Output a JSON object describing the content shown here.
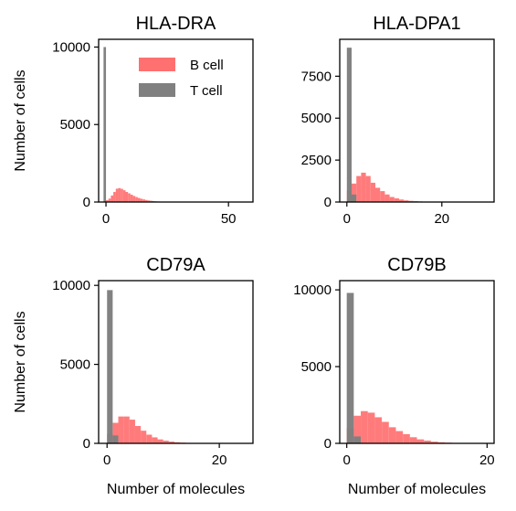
{
  "colors": {
    "b_cell": "#ff7070",
    "t_cell": "#808080",
    "axes": "#000000"
  },
  "chart_data": [
    {
      "type": "bar",
      "title": "HLA-DRA",
      "xlabel": "",
      "ylabel": "Number of cells",
      "xlim": [
        -3,
        60
      ],
      "ylim": [
        0,
        10500
      ],
      "xticks": [
        0,
        50
      ],
      "xtick_labels": [
        "0",
        "50"
      ],
      "yticks": [
        0,
        5000,
        10000
      ],
      "ytick_labels": [
        "0",
        "5000",
        "10000"
      ],
      "legend": {
        "position": "top-right",
        "entries": [
          "B cell",
          "T cell"
        ]
      },
      "series": [
        {
          "name": "B cell",
          "bin_width": 1,
          "bins": [
            0,
            1,
            2,
            3,
            4,
            5,
            6,
            7,
            8,
            9,
            10,
            11,
            12,
            13,
            14,
            15,
            16,
            17,
            18,
            19,
            20,
            21,
            22,
            23,
            24
          ],
          "values": [
            120,
            220,
            420,
            650,
            860,
            900,
            850,
            760,
            650,
            560,
            470,
            390,
            320,
            260,
            210,
            170,
            130,
            100,
            80,
            60,
            45,
            35,
            25,
            18,
            12
          ]
        },
        {
          "name": "T cell",
          "bin_width": 1,
          "bins": [
            -1
          ],
          "values": [
            10000
          ]
        }
      ]
    },
    {
      "type": "bar",
      "title": "HLA-DPA1",
      "xlabel": "",
      "ylabel": "",
      "xlim": [
        -1.5,
        31
      ],
      "ylim": [
        0,
        9700
      ],
      "xticks": [
        0,
        20
      ],
      "xtick_labels": [
        "0",
        "20"
      ],
      "yticks": [
        0,
        2500,
        5000,
        7500
      ],
      "ytick_labels": [
        "0",
        "2500",
        "5000",
        "7500"
      ],
      "series": [
        {
          "name": "B cell",
          "bin_width": 1,
          "bins": [
            0,
            1,
            2,
            3,
            4,
            5,
            6,
            7,
            8,
            9,
            10,
            11,
            12,
            13,
            14,
            15,
            16,
            17,
            18,
            19,
            20
          ],
          "values": [
            700,
            1100,
            1550,
            1750,
            1550,
            1150,
            850,
            650,
            450,
            300,
            220,
            150,
            100,
            70,
            50,
            35,
            25,
            18,
            12,
            8,
            5
          ]
        },
        {
          "name": "T cell",
          "bin_width": 1,
          "bins": [
            0,
            1
          ],
          "values": [
            9200,
            450
          ]
        }
      ]
    },
    {
      "type": "bar",
      "title": "CD79A",
      "xlabel": "Number of molecules",
      "ylabel": "Number of cells",
      "xlim": [
        -1.5,
        26
      ],
      "ylim": [
        0,
        10300
      ],
      "xticks": [
        0,
        20
      ],
      "xtick_labels": [
        "0",
        "20"
      ],
      "yticks": [
        0,
        5000,
        10000
      ],
      "ytick_labels": [
        "0",
        "5000",
        "10000"
      ],
      "series": [
        {
          "name": "B cell",
          "bin_width": 1,
          "bins": [
            0,
            1,
            2,
            3,
            4,
            5,
            6,
            7,
            8,
            9,
            10,
            11,
            12,
            13,
            14,
            15,
            16
          ],
          "values": [
            600,
            1300,
            1700,
            1700,
            1500,
            1100,
            800,
            550,
            380,
            250,
            170,
            110,
            70,
            45,
            30,
            20,
            12
          ]
        },
        {
          "name": "T cell",
          "bin_width": 1,
          "bins": [
            0,
            1
          ],
          "values": [
            9700,
            500
          ]
        }
      ]
    },
    {
      "type": "bar",
      "title": "CD79B",
      "xlabel": "Number of molecules",
      "ylabel": "",
      "xlim": [
        -1,
        21
      ],
      "ylim": [
        0,
        10600
      ],
      "xticks": [
        0,
        20
      ],
      "xtick_labels": [
        "0",
        "20"
      ],
      "yticks": [
        0,
        5000,
        10000
      ],
      "ytick_labels": [
        "0",
        "5000",
        "10000"
      ],
      "series": [
        {
          "name": "B cell",
          "bin_width": 1,
          "bins": [
            0,
            1,
            2,
            3,
            4,
            5,
            6,
            7,
            8,
            9,
            10,
            11,
            12,
            13,
            14,
            15,
            16
          ],
          "values": [
            1000,
            1800,
            2100,
            2000,
            1700,
            1400,
            1050,
            800,
            600,
            400,
            260,
            180,
            110,
            70,
            45,
            28,
            15
          ]
        },
        {
          "name": "T cell",
          "bin_width": 1,
          "bins": [
            0,
            1
          ],
          "values": [
            9800,
            450
          ]
        }
      ]
    }
  ]
}
